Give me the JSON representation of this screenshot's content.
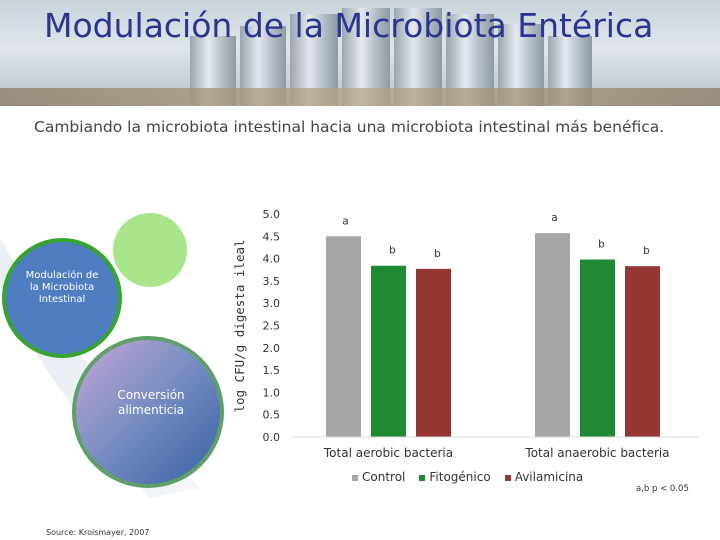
{
  "slide": {
    "title": "Modulación de la Microbiota Entérica",
    "subtitle": "Cambiando la microbiota intestinal hacia una microbiota intestinal más benéfica.",
    "diagram": {
      "small_circle_label": "Modulación de la Microbiota Intestinal",
      "large_circle_label": "Conversión alimenticia"
    },
    "source": "Source: Kroismayer, 2007",
    "footnote": "a,b p < 0.05"
  },
  "colors": {
    "title": "#2b3590",
    "Control": "#a6a6a6",
    "Fitogénico": "#1f8a33",
    "Avilamicina": "#943634"
  },
  "chart_data": {
    "type": "bar",
    "ylabel": "log CFU/g digesta ileal",
    "xlabel": "",
    "ylim": [
      0,
      5.0
    ],
    "yticks": [
      "0.0",
      "0.5",
      "1.0",
      "1.5",
      "2.0",
      "2.5",
      "3.0",
      "3.5",
      "4.0",
      "4.5",
      "5.0"
    ],
    "categories": [
      "Total aerobic bacteria",
      "Total anaerobic bacteria"
    ],
    "series": [
      {
        "name": "Control",
        "values": [
          4.5,
          4.57
        ],
        "letters": [
          "a",
          "a"
        ]
      },
      {
        "name": "Fitogénico",
        "values": [
          3.84,
          3.98
        ],
        "letters": [
          "b",
          "b"
        ]
      },
      {
        "name": "Avilamicina",
        "values": [
          3.77,
          3.83
        ],
        "letters": [
          "b",
          "b"
        ]
      }
    ],
    "legend": "bottom",
    "grid": false
  }
}
